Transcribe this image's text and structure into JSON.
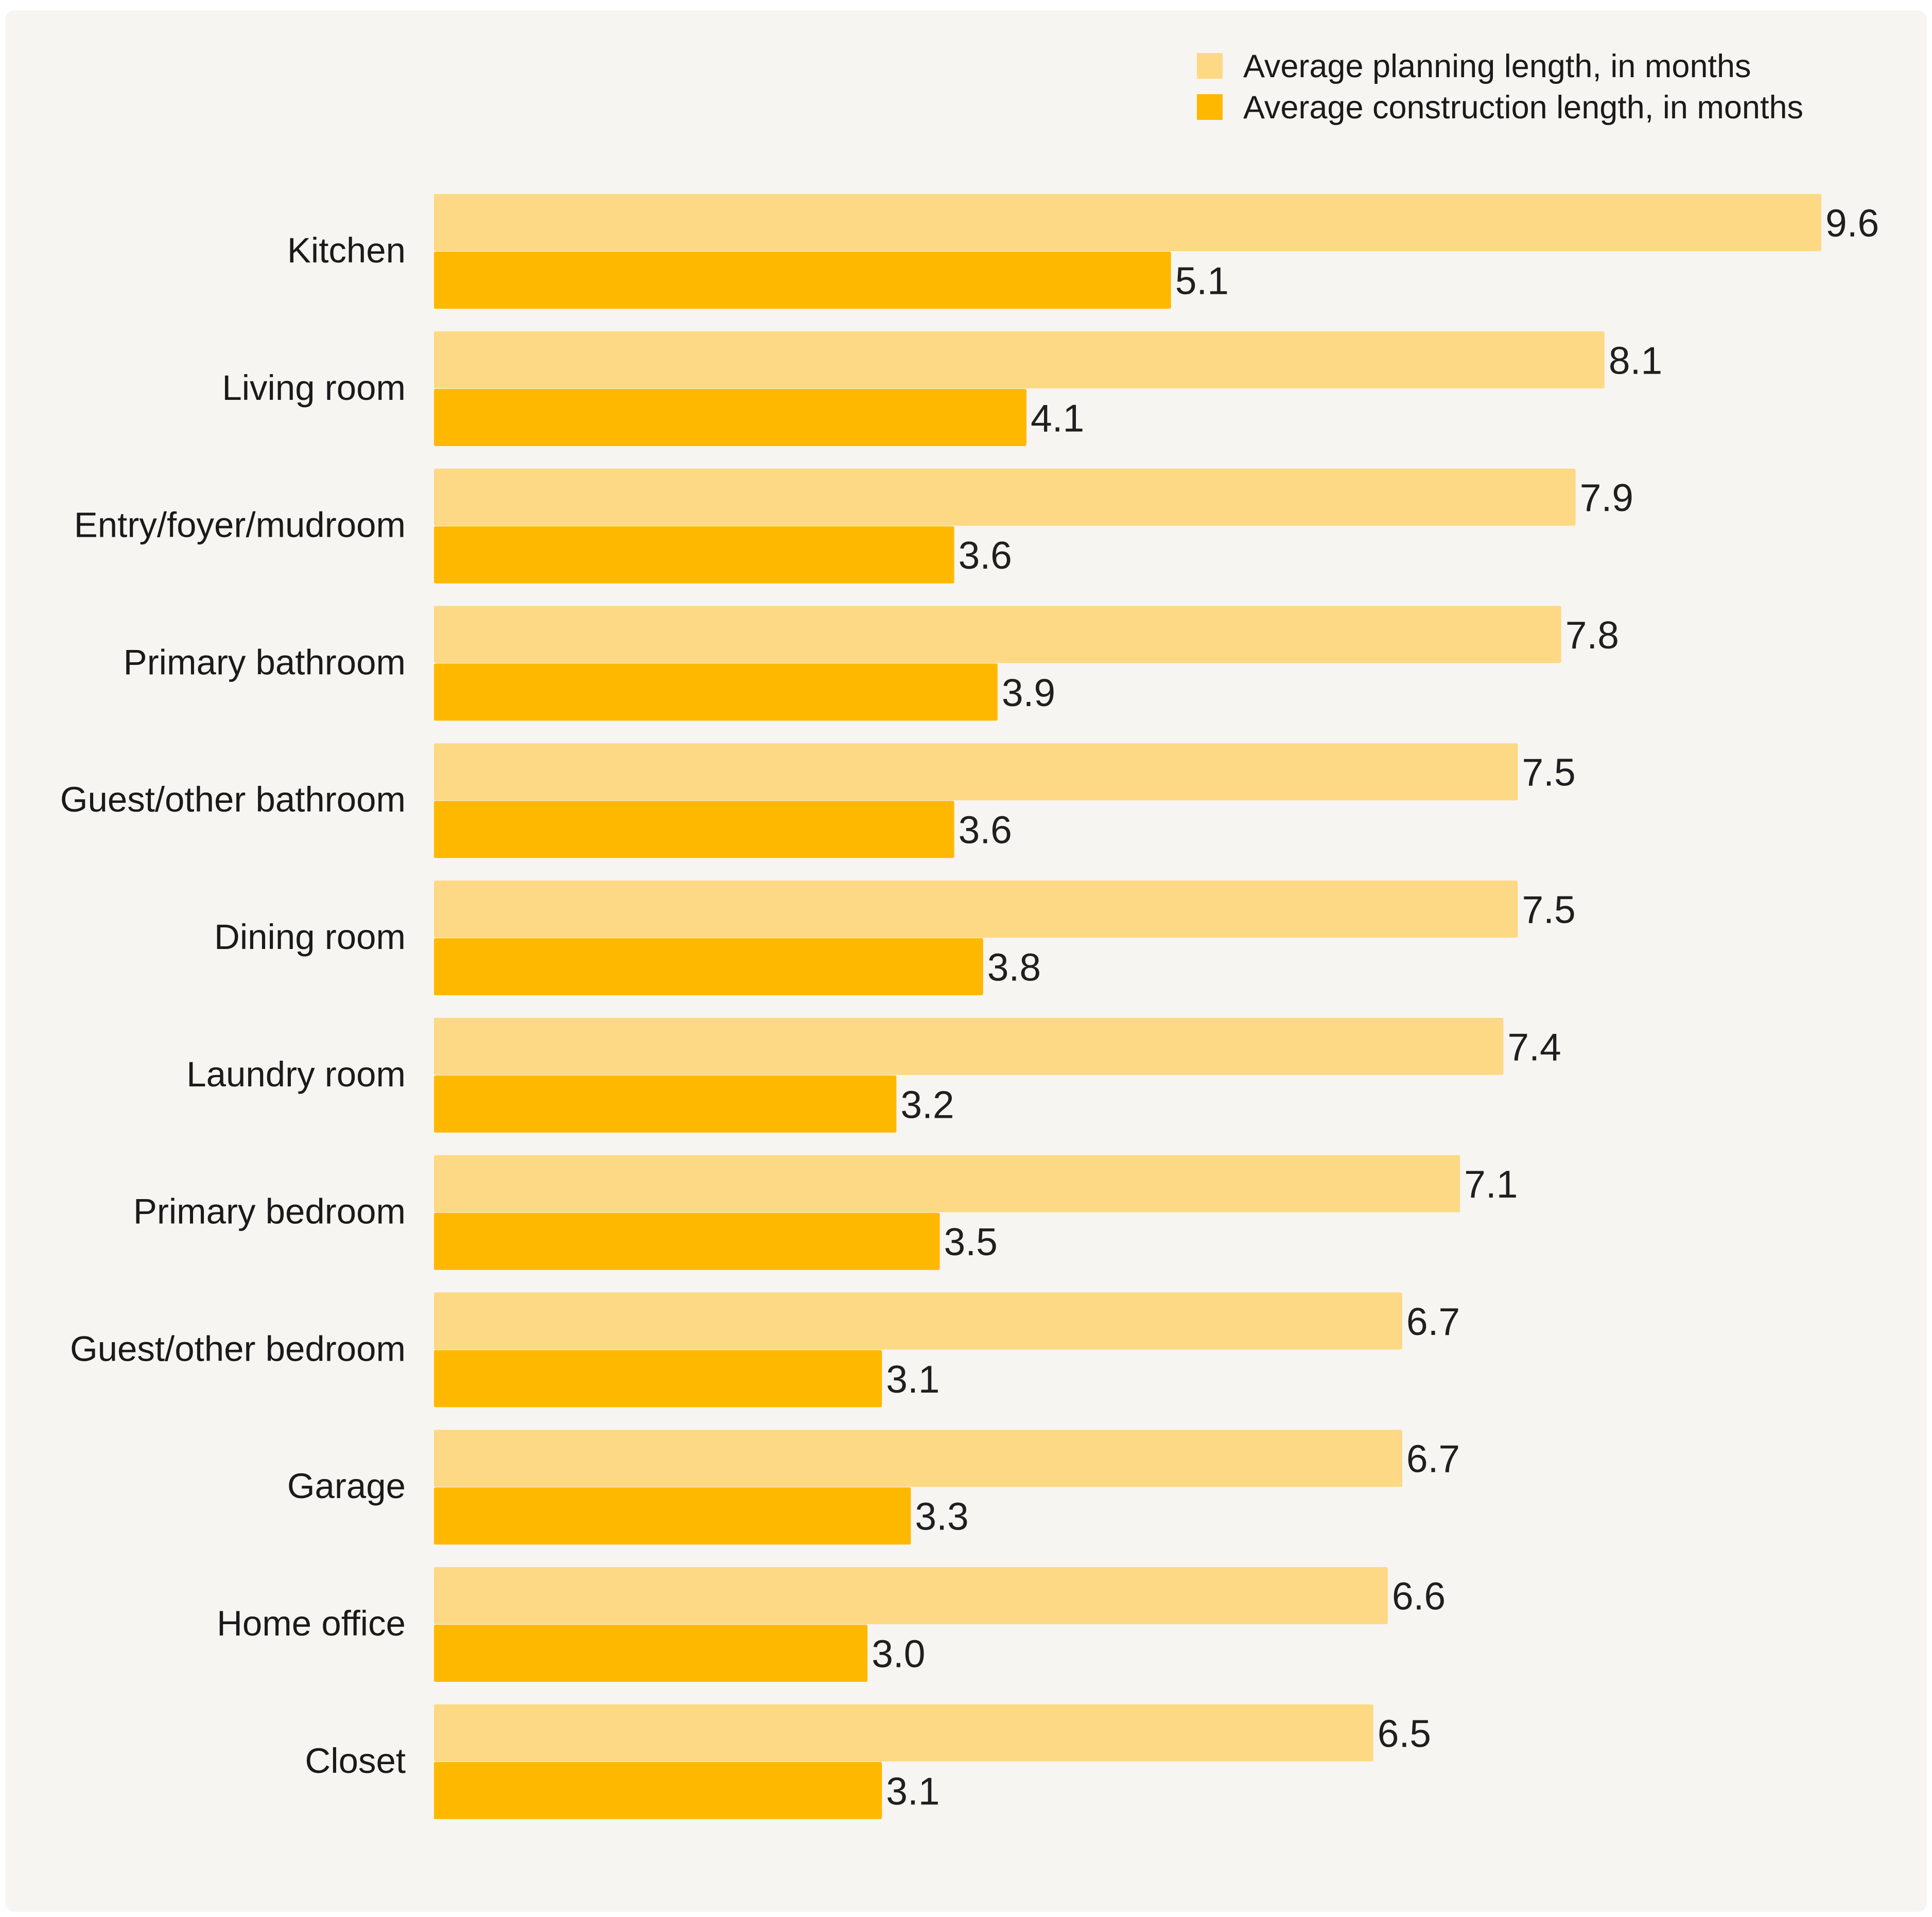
{
  "colors": {
    "background": "#f6f5f2",
    "planning": "#fdd985",
    "construction": "#ffb800",
    "text": "#1a1a1a"
  },
  "chart_data": {
    "type": "bar",
    "orientation": "horizontal",
    "title": "",
    "xlabel": "",
    "ylabel": "",
    "xlim": [
      0,
      9.6
    ],
    "grid": false,
    "legend_position": "top-right",
    "categories": [
      "Kitchen",
      "Living room",
      "Entry/foyer/mudroom",
      "Primary bathroom",
      "Guest/other bathroom",
      "Dining room",
      "Laundry room",
      "Primary bedroom",
      "Guest/other bedroom",
      "Garage",
      "Home office",
      "Closet"
    ],
    "series": [
      {
        "name": "Average planning length, in months",
        "color": "#fdd985",
        "values": [
          9.6,
          8.1,
          7.9,
          7.8,
          7.5,
          7.5,
          7.4,
          7.1,
          6.7,
          6.7,
          6.6,
          6.5
        ],
        "labels": [
          "9.6",
          "8.1",
          "7.9",
          "7.8",
          "7.5",
          "7.5",
          "7.4",
          "7.1",
          "6.7",
          "6.7",
          "6.6",
          "6.5"
        ]
      },
      {
        "name": "Average construction length, in months",
        "color": "#ffb800",
        "values": [
          5.1,
          4.1,
          3.6,
          3.9,
          3.6,
          3.8,
          3.2,
          3.5,
          3.1,
          3.3,
          3.0,
          3.1
        ],
        "labels": [
          "5.1",
          "4.1",
          "3.6",
          "3.9",
          "3.6",
          "3.8",
          "3.2",
          "3.5",
          "3.1",
          "3.3",
          "3.0",
          "3.1"
        ]
      }
    ]
  }
}
